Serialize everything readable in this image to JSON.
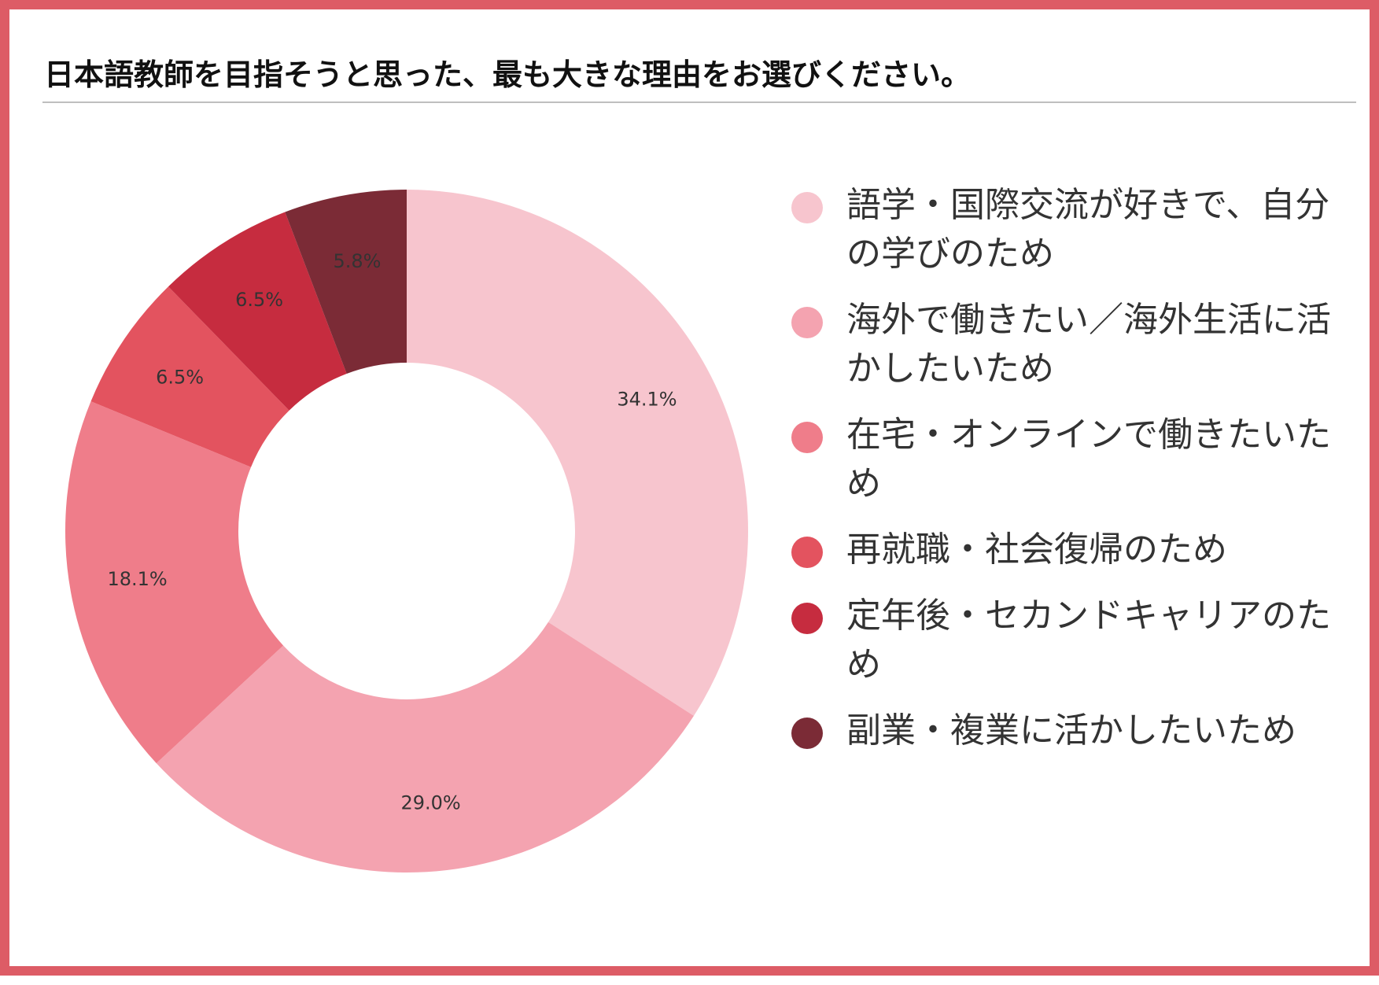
{
  "title": "日本語教師を目指そうと思った、最も大きな理由をお選びください。",
  "chart_data": {
    "type": "pie",
    "donut": true,
    "title": "日本語教師を目指そうと思った、最も大きな理由をお選びください。",
    "legend_position": "right",
    "categories": [
      "語学・国際交流が好きで、自分の学びのため",
      "海外で働きたい／海外生活に活かしたいため",
      "在宅・オンラインで働きたいため",
      "再就職・社会復帰のため",
      "定年後・セカンドキャリアのため",
      "副業・複業に活かしたいため"
    ],
    "values": [
      34.1,
      29.0,
      18.1,
      6.5,
      6.5,
      5.8
    ],
    "labels": [
      "34.1%",
      "29.0%",
      "18.1%",
      "6.5%",
      "6.5%",
      "5.8%"
    ],
    "colors": [
      "#f7c5ce",
      "#f4a3b0",
      "#ef7d8a",
      "#e3535f",
      "#c62c3f",
      "#7b2b36"
    ]
  }
}
